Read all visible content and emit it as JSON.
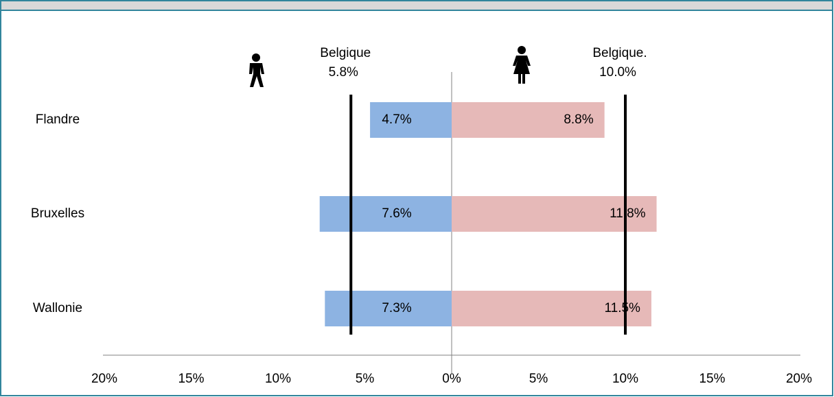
{
  "chart_data": {
    "type": "butterfly",
    "categories": [
      "Flandre",
      "Bruxelles",
      "Wallonie"
    ],
    "series": [
      {
        "color": "#8db3e2",
        "values": [
          -4.7,
          -7.6,
          -7.3
        ],
        "value_labels": [
          "4.7%",
          "7.6%",
          "7.3%"
        ]
      },
      {
        "color": "#e6b9b8",
        "values": [
          8.8,
          11.8,
          11.5
        ],
        "value_labels": [
          "8.8%",
          "11.8%",
          "11.5%"
        ]
      }
    ],
    "reference_lines": [
      {
        "value": -5.8,
        "label": "Belgique",
        "value_label": "5.8%"
      },
      {
        "value": 10.0,
        "label": "Belgique.",
        "value_label": "10.0%"
      }
    ],
    "xlim": [
      -20,
      20
    ],
    "xticks": [
      {
        "value": -20,
        "label": "20%"
      },
      {
        "value": -15,
        "label": "15%"
      },
      {
        "value": -10,
        "label": "10%"
      },
      {
        "value": -5,
        "label": "5%"
      },
      {
        "value": 0,
        "label": "0%"
      },
      {
        "value": 5,
        "label": "5%"
      },
      {
        "value": 10,
        "label": "10%"
      },
      {
        "value": 15,
        "label": "15%"
      },
      {
        "value": 20,
        "label": "20%"
      }
    ]
  }
}
